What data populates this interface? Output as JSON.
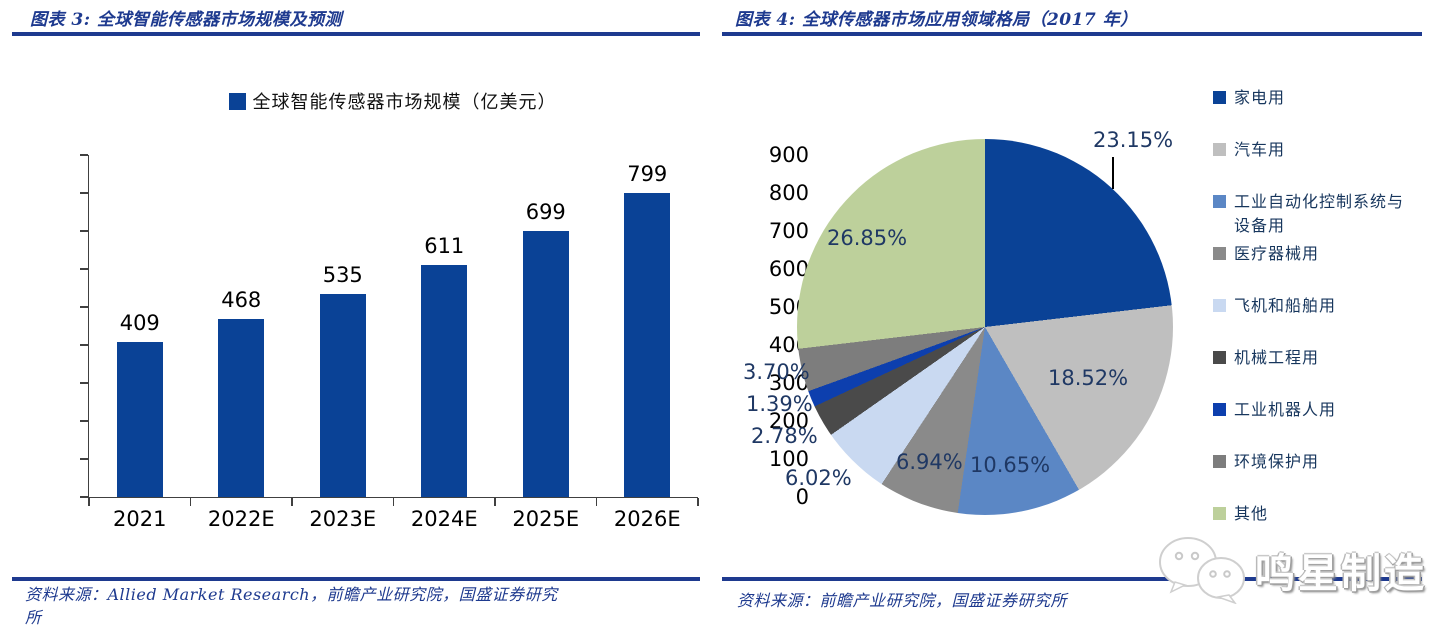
{
  "left_chart": {
    "title": "图表 3:  全球智能传感器市场规模及预测",
    "source": "资料来源：Allied Market Research，前瞻产业研究院，国盛证券研究所"
  },
  "right_chart": {
    "title": "图表 4:  全球传感器市场应用领域格局（2017 年）",
    "source": "资料来源：前瞻产业研究院，国盛证券研究所"
  },
  "watermark": {
    "icon": "wechat-icon",
    "text": "鸣星制造"
  },
  "colors": {
    "accent_navy": "#1e3a8f",
    "label_navy": "#1f3864",
    "bar_blue": "#0a4296",
    "axis_gray": "#404040"
  },
  "chart_data": [
    {
      "type": "bar",
      "title": "全球智能传感器市场规模（亿美元）",
      "categories": [
        "2021",
        "2022E",
        "2023E",
        "2024E",
        "2025E",
        "2026E"
      ],
      "values": [
        409,
        468,
        535,
        611,
        699,
        799
      ],
      "value_labels": [
        "409",
        "468",
        "535",
        "611",
        "699",
        "799"
      ],
      "xlabel": "",
      "ylabel": "",
      "ylim": [
        0,
        900
      ],
      "y_ticks": [
        900,
        800,
        700,
        600,
        500,
        400,
        300,
        200,
        100,
        0
      ],
      "grid": false,
      "bar_color": "#0a4296",
      "legend_position": "top"
    },
    {
      "type": "pie",
      "title": "全球传感器市场应用领域格局（2017 年）",
      "start_angle_deg": 0,
      "direction": "clockwise",
      "legend_position": "right",
      "slices": [
        {
          "label": "家电用",
          "value": 23.15,
          "display": "23.15%",
          "color": "#0a4296"
        },
        {
          "label": "汽车用",
          "value": 18.52,
          "display": "18.52%",
          "color": "#bfbfbf"
        },
        {
          "label": "工业自动化控制系统与设备用",
          "value": 10.65,
          "display": "10.65%",
          "color": "#5b87c5"
        },
        {
          "label": "医疗器械用",
          "value": 6.94,
          "display": "6.94%",
          "color": "#8a8a8a"
        },
        {
          "label": "飞机和船舶用",
          "value": 6.02,
          "display": "6.02%",
          "color": "#c9d9f1"
        },
        {
          "label": "机械工程用",
          "value": 2.78,
          "display": "2.78%",
          "color": "#4a4a4a"
        },
        {
          "label": "工业机器人用",
          "value": 1.39,
          "display": "1.39%",
          "color": "#0d3fae"
        },
        {
          "label": "环境保护用",
          "value": 3.7,
          "display": "3.70%",
          "color": "#7d7d7d"
        },
        {
          "label": "其他",
          "value": 26.85,
          "display": "26.85%",
          "color": "#bdd09b"
        }
      ]
    }
  ]
}
